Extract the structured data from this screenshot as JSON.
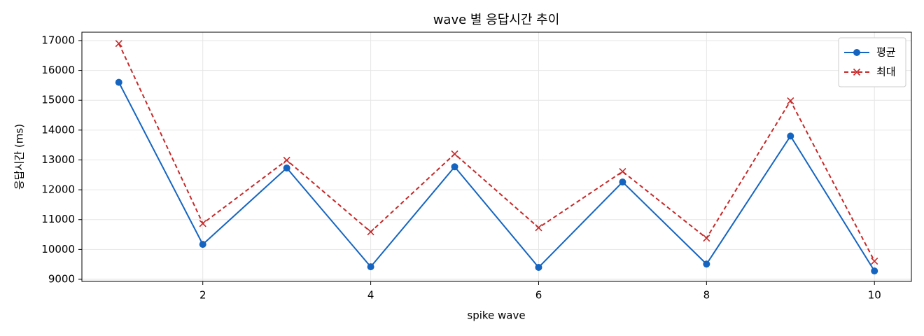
{
  "chart_data": {
    "type": "line",
    "title": "wave 별 응답시간 추이",
    "x_label": "spike wave",
    "y_label": "응답시간 (ms)",
    "x": [
      1,
      2,
      3,
      4,
      5,
      6,
      7,
      8,
      9,
      10
    ],
    "series": [
      {
        "name": "평균",
        "color": "#1565c0",
        "marker": "circle",
        "linestyle": "solid",
        "values": [
          15600,
          10170,
          12730,
          9420,
          12770,
          9400,
          12260,
          9510,
          13800,
          9280
        ]
      },
      {
        "name": "최대",
        "color": "#c62828",
        "marker": "x",
        "linestyle": "dashed",
        "values": [
          16900,
          10870,
          12990,
          10590,
          13200,
          10730,
          12610,
          10380,
          14980,
          9610
        ]
      }
    ],
    "xlim": [
      0.56,
      10.44
    ],
    "ylim": [
      8930,
      17280
    ],
    "xticks": [
      2,
      4,
      6,
      8,
      10
    ],
    "yticks": [
      9000,
      10000,
      11000,
      12000,
      13000,
      14000,
      15000,
      16000,
      17000
    ],
    "grid": true,
    "legend": "upper right"
  }
}
